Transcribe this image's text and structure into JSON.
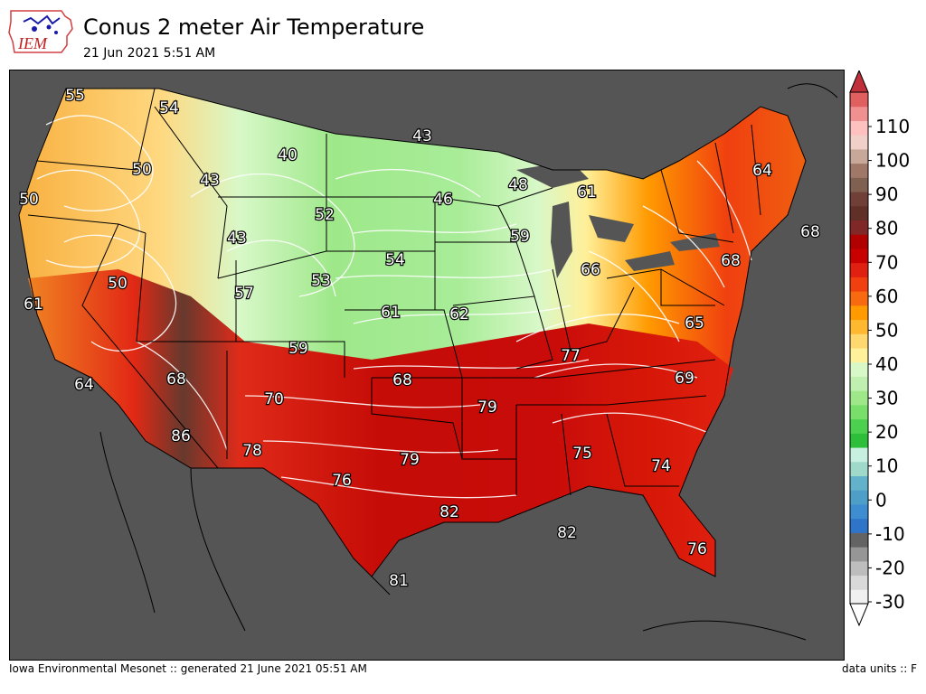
{
  "header": {
    "logo_text": "IEM",
    "title": "Conus 2 meter Air Temperature",
    "subtitle": "21 Jun 2021 5:51 AM"
  },
  "footer": {
    "left": "Iowa Environmental Mesonet :: generated 21 June 2021 05:51 AM",
    "right": "data units :: F"
  },
  "colorbar": {
    "tick_labels": [
      "-30",
      "-20",
      "-10",
      "0",
      "10",
      "20",
      "30",
      "40",
      "50",
      "60",
      "70",
      "80",
      "90",
      "100",
      "110"
    ],
    "colors": [
      "#f0f0f0",
      "#d9d9d9",
      "#bdbdbd",
      "#969696",
      "#636363",
      "#2e74c8",
      "#3d8dd0",
      "#4e9fc8",
      "#63b2cc",
      "#9ed9c9",
      "#c8f0e0",
      "#2ebf3a",
      "#4cd14f",
      "#78e06a",
      "#9ee88a",
      "#c0f0b0",
      "#d8f8c8",
      "#fff09a",
      "#ffd870",
      "#ffb830",
      "#ff9a00",
      "#f86a10",
      "#f04010",
      "#e02010",
      "#c80000",
      "#b00000",
      "#802828",
      "#603028",
      "#704038",
      "#806050",
      "#a07868",
      "#c8a898",
      "#f0d0c8",
      "#ffc0c0",
      "#f09090",
      "#e06060"
    ],
    "over_color": "#c0303a",
    "under_color": "#ffffff"
  },
  "map": {
    "background": "#555555",
    "temperature_labels": [
      {
        "value": "55"
      },
      {
        "value": "54"
      },
      {
        "value": "43"
      },
      {
        "value": "40"
      },
      {
        "value": "50"
      },
      {
        "value": "43"
      },
      {
        "value": "50"
      },
      {
        "value": "52"
      },
      {
        "value": "46"
      },
      {
        "value": "48"
      },
      {
        "value": "61"
      },
      {
        "value": "64"
      },
      {
        "value": "43"
      },
      {
        "value": "54"
      },
      {
        "value": "59"
      },
      {
        "value": "50"
      },
      {
        "value": "57"
      },
      {
        "value": "53"
      },
      {
        "value": "61"
      },
      {
        "value": "62"
      },
      {
        "value": "66"
      },
      {
        "value": "68"
      },
      {
        "value": "68"
      },
      {
        "value": "61"
      },
      {
        "value": "65"
      },
      {
        "value": "59"
      },
      {
        "value": "77"
      },
      {
        "value": "64"
      },
      {
        "value": "68"
      },
      {
        "value": "68"
      },
      {
        "value": "69"
      },
      {
        "value": "70"
      },
      {
        "value": "79"
      },
      {
        "value": "86"
      },
      {
        "value": "78"
      },
      {
        "value": "79"
      },
      {
        "value": "75"
      },
      {
        "value": "74"
      },
      {
        "value": "76"
      },
      {
        "value": "82"
      },
      {
        "value": "82"
      },
      {
        "value": "76"
      },
      {
        "value": "81"
      }
    ]
  }
}
